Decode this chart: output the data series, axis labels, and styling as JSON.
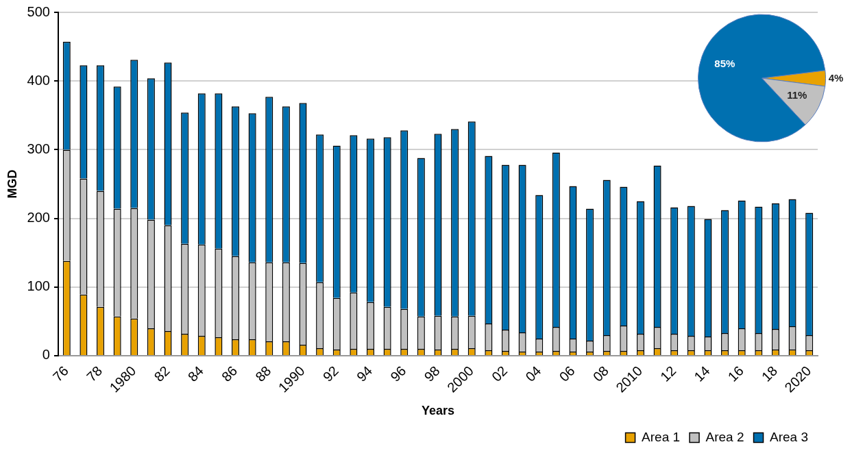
{
  "chart_data": [
    {
      "type": "bar",
      "xlabel": "Years",
      "ylabel": "MGD",
      "stacked": true,
      "grid": "y",
      "legend": "bottom right",
      "categories": [
        "76",
        null,
        "78",
        null,
        "1980",
        null,
        "82",
        null,
        "84",
        null,
        "86",
        null,
        "88",
        null,
        "1990",
        null,
        "92",
        null,
        "94",
        null,
        "96",
        null,
        "98",
        null,
        "2000",
        null,
        "02",
        null,
        "04",
        null,
        "06",
        null,
        "08",
        null,
        "2010",
        null,
        "12",
        null,
        "14",
        null,
        "16",
        null,
        "18",
        null,
        "2020"
      ],
      "ylim": [
        0,
        500
      ],
      "yticks": [
        0,
        100,
        200,
        300,
        400,
        500
      ],
      "series": [
        {
          "name": "Area 1",
          "color": "#e8a202",
          "values": [
            138,
            89,
            71,
            57,
            54,
            40,
            36,
            32,
            29,
            27,
            24,
            24,
            21,
            21,
            16,
            11,
            9,
            10,
            10,
            10,
            10,
            10,
            9,
            10,
            11,
            8,
            7,
            6,
            6,
            7,
            6,
            6,
            7,
            7,
            8,
            11,
            8,
            8,
            8,
            8,
            8,
            8,
            9,
            9,
            8
          ]
        },
        {
          "name": "Area 2",
          "color": "#c0c0c0",
          "values": [
            162,
            169,
            169,
            157,
            161,
            158,
            154,
            131,
            133,
            129,
            121,
            112,
            115,
            115,
            119,
            96,
            75,
            82,
            68,
            61,
            58,
            47,
            49,
            47,
            47,
            39,
            31,
            28,
            19,
            35,
            19,
            16,
            23,
            37,
            24,
            31,
            24,
            21,
            20,
            25,
            32,
            25,
            30,
            34,
            22
          ]
        },
        {
          "name": "Area 3",
          "color": "#0070b0",
          "values": [
            157,
            165,
            183,
            178,
            216,
            206,
            237,
            191,
            220,
            226,
            218,
            217,
            241,
            227,
            233,
            215,
            222,
            229,
            238,
            247,
            260,
            231,
            265,
            273,
            283,
            244,
            240,
            244,
            209,
            254,
            222,
            192,
            226,
            202,
            193,
            235,
            184,
            189,
            171,
            179,
            186,
            184,
            183,
            185,
            178
          ]
        }
      ]
    },
    {
      "type": "pie",
      "categories": [
        null,
        null,
        null
      ],
      "values": [
        4,
        11,
        85
      ],
      "colors": [
        "#e8a202",
        "#c0c0c0",
        "#0070b0"
      ],
      "value_labels": [
        "4%",
        "11%",
        "85%"
      ]
    }
  ]
}
